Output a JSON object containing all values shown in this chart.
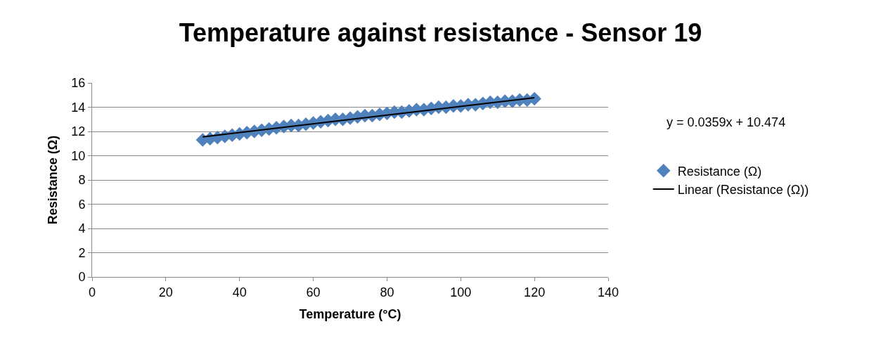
{
  "chart_data": {
    "type": "scatter",
    "title": "Temperature against resistance - Sensor 19",
    "xlabel": "Temperature (°C)",
    "ylabel": "Resistance (Ω)",
    "xlim": [
      0,
      140
    ],
    "xticks": [
      0,
      20,
      40,
      60,
      80,
      100,
      120,
      140
    ],
    "ylim": [
      0,
      16
    ],
    "yticks": [
      0,
      2,
      4,
      6,
      8,
      10,
      12,
      14,
      16
    ],
    "grid": "y",
    "legend": "right",
    "annotations": [
      "y = 0.0359x + 10.474"
    ],
    "series": [
      {
        "name": "Resistance (Ω)",
        "marker": "diamond",
        "color": "#4f81bd",
        "x": [
          30,
          32,
          34,
          36,
          38,
          40,
          42,
          44,
          46,
          48,
          50,
          52,
          54,
          56,
          58,
          60,
          62,
          64,
          66,
          68,
          70,
          72,
          74,
          76,
          78,
          80,
          82,
          84,
          86,
          88,
          90,
          92,
          94,
          96,
          98,
          100,
          102,
          104,
          106,
          108,
          110,
          112,
          114,
          116,
          118,
          120
        ],
        "values": [
          11.3,
          11.4,
          11.5,
          11.6,
          11.7,
          11.8,
          11.9,
          12.0,
          12.1,
          12.2,
          12.3,
          12.4,
          12.5,
          12.5,
          12.6,
          12.7,
          12.8,
          12.9,
          13.0,
          13.0,
          13.1,
          13.2,
          13.3,
          13.3,
          13.4,
          13.5,
          13.6,
          13.6,
          13.7,
          13.8,
          13.8,
          13.9,
          14.0,
          14.0,
          14.1,
          14.1,
          14.2,
          14.2,
          14.3,
          14.4,
          14.4,
          14.5,
          14.5,
          14.6,
          14.6,
          14.7
        ]
      },
      {
        "name": "Linear (Resistance (Ω))",
        "type": "line",
        "marker": "none",
        "line_style": "solid",
        "color": "#000000",
        "x": [
          30,
          120
        ],
        "values": [
          11.55,
          14.78
        ]
      }
    ]
  }
}
